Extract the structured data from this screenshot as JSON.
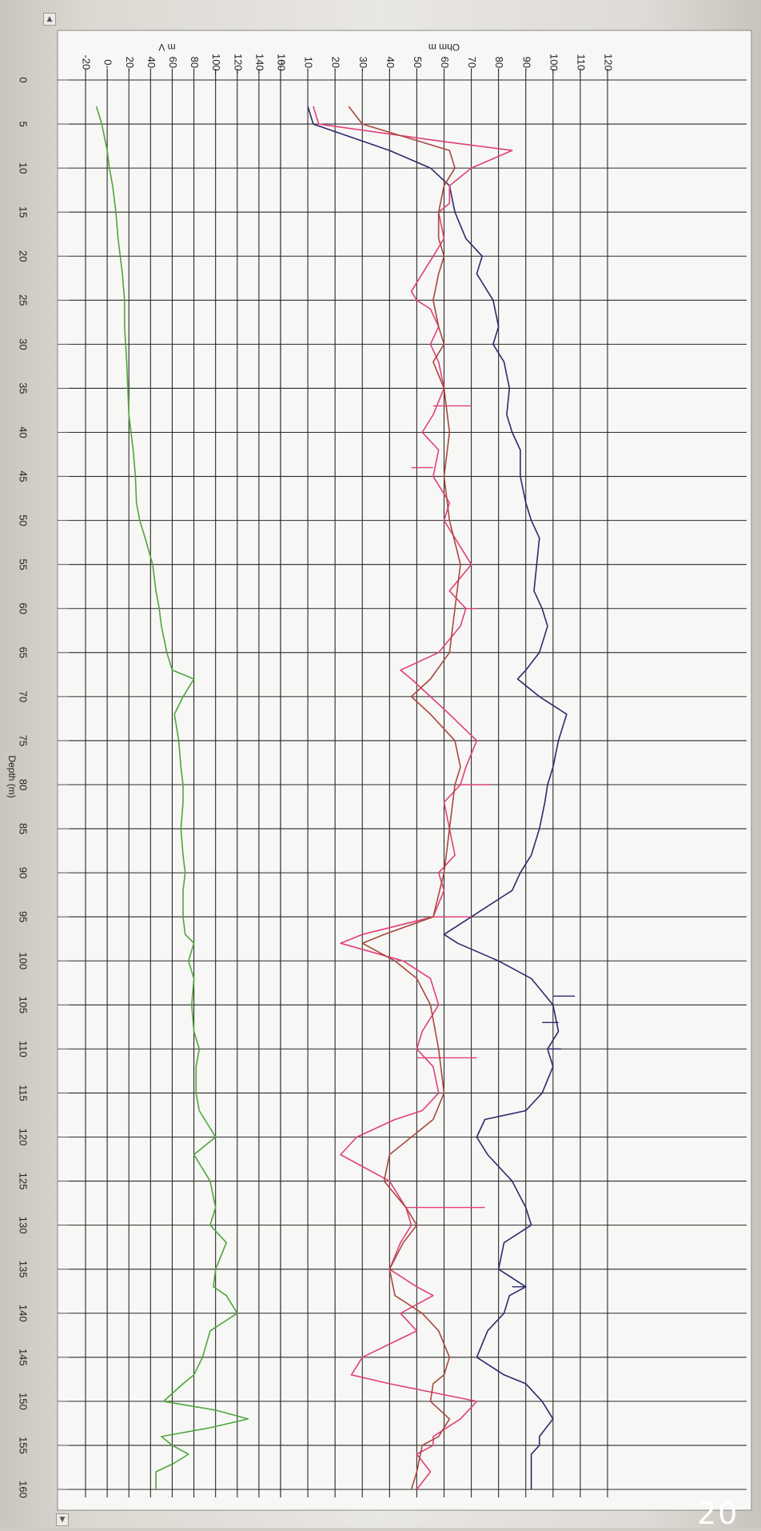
{
  "chart_data": {
    "type": "line",
    "orientation": "rotated-90-clockwise",
    "depth_axis": {
      "label": "Depth (m)",
      "range": [
        0,
        160
      ],
      "ticks": [
        0,
        5,
        10,
        15,
        20,
        25,
        30,
        35,
        40,
        45,
        50,
        55,
        60,
        65,
        70,
        75,
        80,
        85,
        90,
        95,
        100,
        105,
        110,
        115,
        120,
        125,
        130,
        135,
        140,
        145,
        150,
        155,
        160
      ]
    },
    "panels": [
      {
        "name": "sp-panel",
        "unit_label": "m V",
        "range": [
          -20,
          160
        ],
        "ticks": [
          -20,
          0,
          20,
          40,
          60,
          80,
          100,
          120,
          140,
          160
        ],
        "tick_labels": [
          "-20",
          "0",
          "20",
          "40",
          "60",
          "80",
          "100",
          "120",
          "140",
          "160"
        ],
        "series": [
          {
            "color": "#4ea73a",
            "depth": [
              3,
              5,
              8,
              10,
              12,
              15,
              18,
              20,
              22,
              25,
              28,
              30,
              32,
              35,
              38,
              40,
              42,
              45,
              48,
              50,
              52,
              55,
              58,
              60,
              62,
              65,
              67,
              68,
              70,
              72,
              75,
              78,
              80,
              82,
              85,
              88,
              90,
              92,
              95,
              97,
              98,
              100,
              102,
              105,
              108,
              110,
              112,
              115,
              117,
              118,
              120,
              122,
              125,
              128,
              130,
              132,
              135,
              137,
              138,
              140,
              142,
              145,
              147,
              148,
              150,
              151,
              152,
              153,
              154,
              155,
              156,
              157,
              158,
              160
            ],
            "values": [
              -10,
              -5,
              0,
              2,
              5,
              8,
              10,
              12,
              14,
              16,
              16,
              17,
              18,
              19,
              20,
              22,
              24,
              26,
              27,
              30,
              35,
              42,
              45,
              48,
              50,
              55,
              60,
              80,
              70,
              62,
              66,
              68,
              70,
              70,
              68,
              70,
              72,
              70,
              70,
              72,
              80,
              75,
              80,
              78,
              80,
              85,
              82,
              82,
              85,
              90,
              100,
              80,
              95,
              100,
              95,
              110,
              100,
              98,
              110,
              120,
              95,
              88,
              80,
              70,
              52,
              100,
              130,
              95,
              50,
              60,
              75,
              62,
              45,
              45
            ]
          }
        ]
      },
      {
        "name": "resistivity-panel",
        "unit_label": "Ohm m",
        "range": [
          0,
          120
        ],
        "ticks": [
          0,
          10,
          20,
          30,
          40,
          50,
          60,
          70,
          80,
          90,
          100,
          110,
          120
        ],
        "tick_labels": [
          "0",
          "10",
          "20",
          "30",
          "40",
          "50",
          "60",
          "70",
          "80",
          "90",
          "100",
          "110",
          "120"
        ],
        "series": [
          {
            "color": "#2c2a6e",
            "depth": [
              3,
              5,
              8,
              10,
              12,
              15,
              18,
              20,
              22,
              25,
              28,
              30,
              32,
              35,
              38,
              40,
              42,
              45,
              48,
              50,
              52,
              55,
              58,
              60,
              62,
              65,
              67,
              68,
              70,
              72,
              75,
              78,
              80,
              82,
              85,
              88,
              90,
              92,
              95,
              97,
              98,
              100,
              102,
              105,
              108,
              110,
              112,
              115,
              117,
              118,
              120,
              122,
              125,
              128,
              130,
              132,
              135,
              137,
              138,
              140,
              142,
              145,
              147,
              148,
              150,
              152,
              154,
              155,
              156,
              158,
              160
            ],
            "values": [
              10,
              12,
              40,
              55,
              62,
              64,
              68,
              74,
              72,
              78,
              80,
              78,
              82,
              84,
              83,
              85,
              88,
              88,
              90,
              92,
              95,
              94,
              93,
              96,
              98,
              95,
              90,
              87,
              95,
              105,
              102,
              100,
              98,
              97,
              95,
              92,
              88,
              85,
              70,
              60,
              65,
              80,
              92,
              100,
              102,
              98,
              100,
              96,
              90,
              75,
              72,
              76,
              85,
              90,
              92,
              82,
              80,
              90,
              84,
              82,
              76,
              72,
              82,
              90,
              96,
              100,
              95,
              95,
              92,
              92,
              92
            ],
            "spikes": [
              [
                104,
                108
              ],
              [
                107,
                96
              ],
              [
                110,
                103
              ],
              [
                137,
                85
              ]
            ]
          },
          {
            "color": "#e0407a",
            "depth": [
              3,
              5,
              7,
              8,
              10,
              12,
              14,
              15,
              18,
              20,
              22,
              24,
              25,
              26,
              28,
              30,
              32,
              35,
              38,
              40,
              42,
              45,
              48,
              50,
              52,
              55,
              58,
              60,
              62,
              65,
              67,
              68,
              70,
              72,
              75,
              78,
              80,
              82,
              85,
              88,
              90,
              92,
              95,
              97,
              98,
              100,
              102,
              105,
              108,
              110,
              112,
              115,
              117,
              118,
              120,
              122,
              125,
              128,
              130,
              132,
              135,
              137,
              138,
              140,
              142,
              145,
              147,
              148,
              150,
              152,
              154,
              155,
              156,
              158,
              160
            ],
            "values": [
              12,
              14,
              60,
              85,
              70,
              62,
              62,
              58,
              60,
              56,
              52,
              48,
              50,
              55,
              58,
              55,
              58,
              60,
              56,
              52,
              58,
              56,
              62,
              60,
              64,
              70,
              62,
              68,
              66,
              58,
              44,
              48,
              55,
              62,
              72,
              68,
              66,
              60,
              62,
              64,
              58,
              60,
              56,
              30,
              22,
              45,
              55,
              58,
              52,
              50,
              56,
              58,
              52,
              42,
              28,
              22,
              40,
              46,
              48,
              44,
              40,
              50,
              56,
              44,
              50,
              30,
              26,
              40,
              72,
              66,
              56,
              56,
              50,
              55,
              50
            ],
            "spikes": [
              [
                37,
                70
              ],
              [
                44,
                48
              ],
              [
                60,
                72
              ],
              [
                80,
                77
              ],
              [
                95,
                70
              ],
              [
                111,
                72
              ],
              [
                128,
                75
              ]
            ]
          },
          {
            "color": "#a8493e",
            "depth": [
              3,
              5,
              8,
              10,
              12,
              15,
              18,
              20,
              22,
              25,
              28,
              30,
              32,
              35,
              40,
              45,
              50,
              55,
              60,
              65,
              68,
              70,
              72,
              75,
              78,
              80,
              85,
              90,
              95,
              97,
              98,
              100,
              102,
              105,
              110,
              115,
              118,
              120,
              122,
              125,
              128,
              130,
              132,
              135,
              138,
              140,
              142,
              145,
              147,
              148,
              150,
              152,
              154,
              155,
              158,
              160
            ],
            "values": [
              25,
              30,
              62,
              64,
              60,
              58,
              58,
              60,
              58,
              56,
              58,
              60,
              56,
              60,
              62,
              60,
              62,
              66,
              64,
              62,
              55,
              48,
              55,
              64,
              66,
              64,
              62,
              60,
              56,
              38,
              30,
              42,
              50,
              55,
              58,
              60,
              56,
              48,
              40,
              38,
              46,
              50,
              45,
              40,
              42,
              52,
              58,
              62,
              60,
              56,
              55,
              62,
              58,
              52,
              50,
              48
            ]
          }
        ]
      }
    ]
  },
  "ui": {
    "scroll_up_glyph": "▲",
    "scroll_down_glyph": "▼",
    "corner_text": "20"
  }
}
